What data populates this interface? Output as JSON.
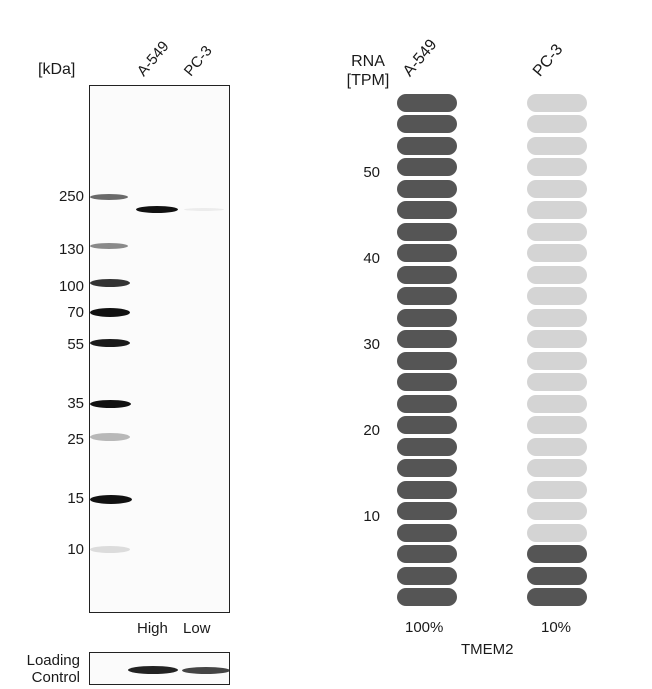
{
  "western_blot": {
    "unit_label": "[kDa]",
    "lanes": [
      {
        "name": "A-549",
        "level": "High"
      },
      {
        "name": "PC-3",
        "level": "Low"
      }
    ],
    "markers": [
      "250",
      "130",
      "100",
      "70",
      "55",
      "35",
      "25",
      "15",
      "10"
    ],
    "loading_control_label": [
      "Loading",
      "Control"
    ]
  },
  "rna": {
    "axis_label": [
      "RNA",
      "[TPM]"
    ],
    "gene": "TMEM2",
    "colors": {
      "filled": "#555555",
      "empty": "#d4d4d4"
    }
  },
  "chart_data": {
    "type": "bar",
    "ylabel": "RNA [TPM]",
    "xlabel": "TMEM2",
    "ylim": [
      0,
      60
    ],
    "yticks": [
      10,
      20,
      30,
      40,
      50
    ],
    "segments_total": 24,
    "categories": [
      "A-549",
      "PC-3"
    ],
    "values": [
      100,
      10
    ],
    "value_labels": [
      "100%",
      "10%"
    ],
    "filled_segments": [
      24,
      3
    ]
  }
}
